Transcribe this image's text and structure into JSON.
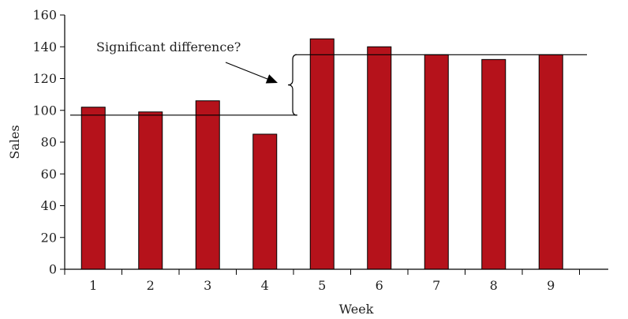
{
  "chart_data": {
    "type": "bar",
    "categories": [
      "1",
      "2",
      "3",
      "4",
      "5",
      "6",
      "7",
      "8",
      "9"
    ],
    "values": [
      102,
      99,
      106,
      85,
      145,
      140,
      135,
      132,
      135
    ],
    "xlabel": "Week",
    "ylabel": "Sales",
    "ylim": [
      0,
      160
    ],
    "yticks": [
      0,
      20,
      40,
      60,
      80,
      100,
      120,
      140,
      160
    ],
    "grid": false,
    "bar_color": "#b5121b",
    "annotation": {
      "text": "Significant difference?",
      "level_low": 97,
      "level_high": 135
    }
  }
}
